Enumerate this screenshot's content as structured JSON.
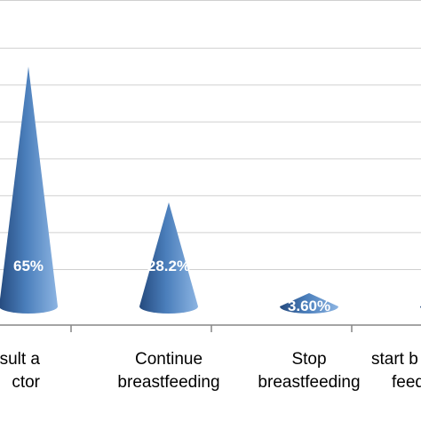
{
  "chart_data": {
    "type": "bar",
    "bar_shape": "cone",
    "categories": [
      [
        "sult a",
        "ctor"
      ],
      [
        "Continue",
        "breastfeeding"
      ],
      [
        "Stop",
        "breastfeeding"
      ],
      [
        "start b",
        "feed"
      ]
    ],
    "values": [
      65,
      28.2,
      3.6,
      3.2
    ],
    "data_labels": [
      "65%",
      "28.2%",
      "3.60%",
      ""
    ],
    "ylim": [
      0,
      70
    ],
    "grid": true,
    "legend": "none",
    "colors": {
      "cone_dark": "#254a7e",
      "cone_mid": "#4a7ebb",
      "cone_light": "#8cb4e2",
      "grid": "#d0d0d0",
      "axis": "#868686"
    }
  }
}
